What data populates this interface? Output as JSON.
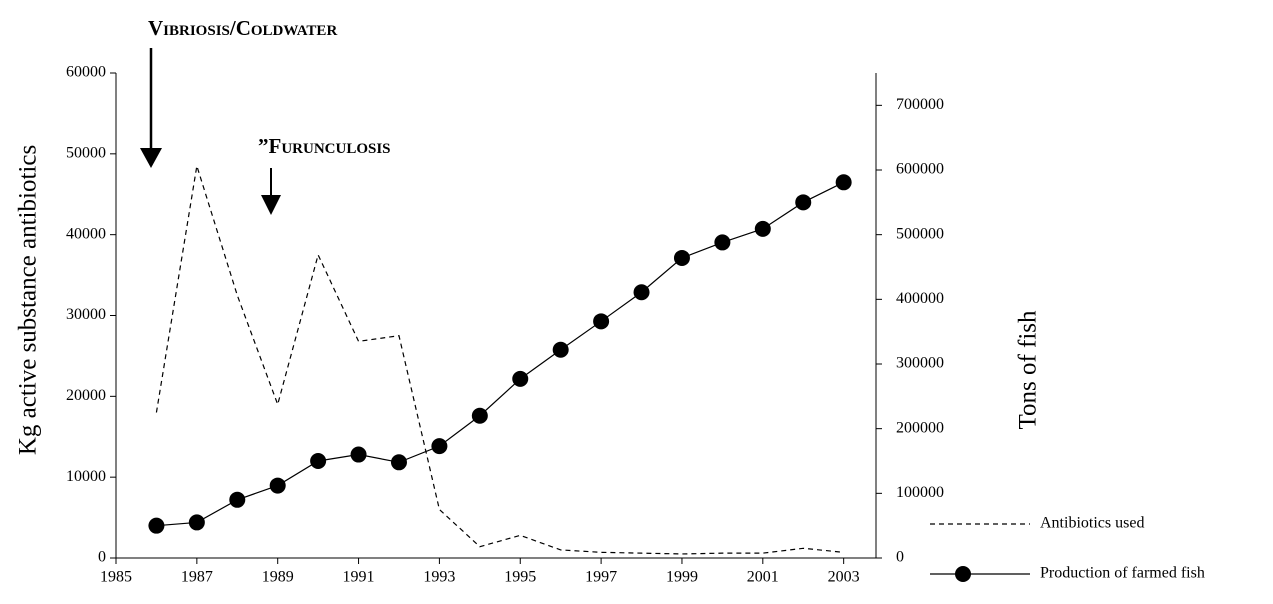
{
  "chart_data": {
    "type": "line",
    "ylabel": "Kg active substance antibiotics",
    "y2label": "Tons of fish",
    "annotations": [
      "Vibriosis/Coldwater",
      "”Furunculosis"
    ],
    "x": [
      1986,
      1987,
      1988,
      1989,
      1990,
      1991,
      1992,
      1993,
      1994,
      1995,
      1996,
      1997,
      1998,
      1999,
      2000,
      2001,
      2002,
      2003
    ],
    "xlim": [
      1985,
      2003.8
    ],
    "xticks": [
      1985,
      1987,
      1989,
      1991,
      1993,
      1995,
      1997,
      1999,
      2001,
      2003
    ],
    "ylim": [
      0,
      60000
    ],
    "yticks": [
      0,
      10000,
      20000,
      30000,
      40000,
      50000,
      60000
    ],
    "y2lim": [
      0,
      750000
    ],
    "y2ticks": [
      0,
      100000,
      200000,
      300000,
      400000,
      500000,
      600000,
      700000
    ],
    "series": [
      {
        "name": "Antibiotics used",
        "color": "#000000",
        "dashed": true,
        "values": [
          18000,
          48500,
          32500,
          19000,
          37500,
          26800,
          27500,
          6000,
          1400,
          2800,
          1000,
          700,
          600,
          500,
          600,
          600,
          1200,
          700
        ]
      },
      {
        "name": "Production of farmed fish",
        "color": "#000000",
        "axis": "y2",
        "markers": true,
        "values": [
          50000,
          55000,
          90000,
          112000,
          150000,
          160000,
          148000,
          173000,
          220000,
          277000,
          322000,
          366000,
          411000,
          464000,
          488000,
          509000,
          550000,
          581000
        ]
      }
    ]
  }
}
